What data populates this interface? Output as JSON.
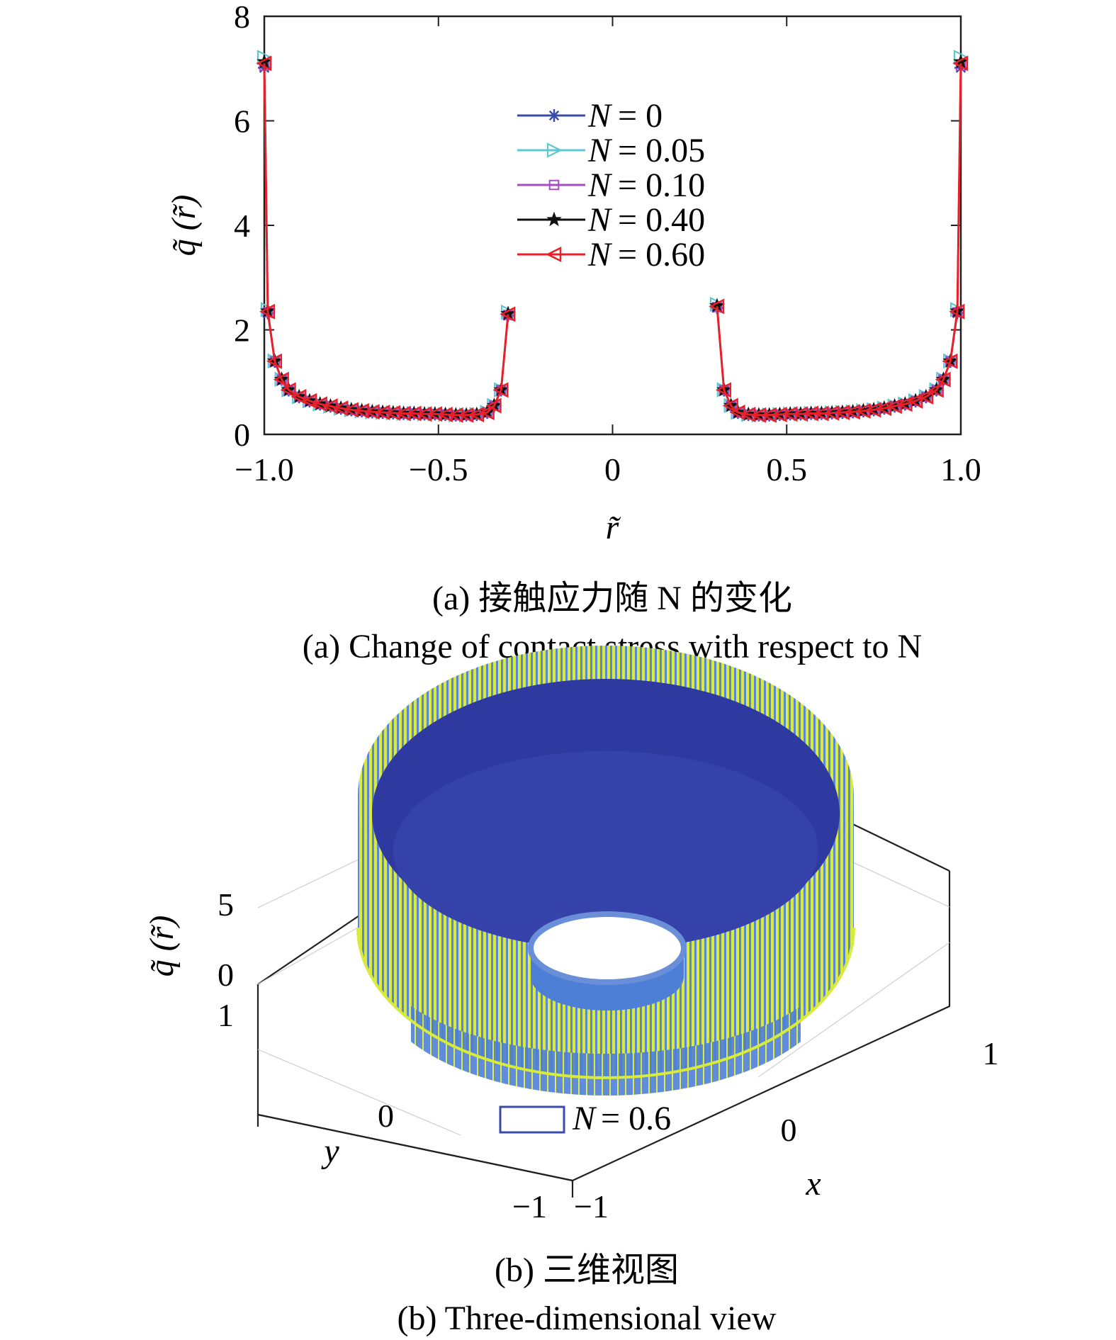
{
  "chart_data": [
    {
      "type": "line",
      "xlabel": "r̃",
      "ylabel": "q̃ (r̃)",
      "xlim": [
        -1.0,
        1.0
      ],
      "ylim": [
        0,
        8
      ],
      "x_ticks": [
        "−1.0",
        "−0.5",
        "0",
        "0.5",
        "1.0"
      ],
      "x_tick_values": [
        -1.0,
        -0.5,
        0,
        0.5,
        1.0
      ],
      "y_ticks": [
        "0",
        "2",
        "4",
        "6",
        "8"
      ],
      "y_tick_values": [
        0,
        2,
        4,
        6,
        8
      ],
      "legend_position": "top-center",
      "caption_cn": "(a) 接触应力随 N 的变化",
      "caption_en": "(a) Change of contact stress with respect to N",
      "series": [
        {
          "name": "N = 0",
          "label_var": "N",
          "label_value": "= 0",
          "color": "#3b4ba8",
          "marker": "asterisk"
        },
        {
          "name": "N = 0.05",
          "label_var": "N",
          "label_value": "= 0.05",
          "color": "#5ec8cf",
          "marker": "triangle-right"
        },
        {
          "name": "N = 0.10",
          "label_var": "N",
          "label_value": "= 0.10",
          "color": "#a64cc4",
          "marker": "square"
        },
        {
          "name": "N = 0.40",
          "label_var": "N",
          "label_value": "= 0.40",
          "color": "#111111",
          "marker": "star"
        },
        {
          "name": "N = 0.60",
          "label_var": "N",
          "label_value": "= 0.60",
          "color": "#e8202a",
          "marker": "triangle-left"
        }
      ],
      "x": [
        -1.0,
        -0.99,
        -0.97,
        -0.95,
        -0.93,
        -0.9,
        -0.87,
        -0.84,
        -0.81,
        -0.78,
        -0.75,
        -0.72,
        -0.69,
        -0.66,
        -0.63,
        -0.6,
        -0.57,
        -0.54,
        -0.51,
        -0.48,
        -0.45,
        -0.42,
        -0.39,
        -0.36,
        -0.34,
        -0.32,
        -0.3,
        null,
        0.3,
        0.32,
        0.34,
        0.36,
        0.39,
        0.42,
        0.45,
        0.48,
        0.51,
        0.54,
        0.57,
        0.6,
        0.63,
        0.66,
        0.69,
        0.72,
        0.75,
        0.78,
        0.81,
        0.84,
        0.87,
        0.9,
        0.93,
        0.95,
        0.97,
        0.99,
        1.0
      ],
      "y": [
        7.1,
        2.35,
        1.4,
        1.05,
        0.85,
        0.72,
        0.64,
        0.58,
        0.54,
        0.5,
        0.47,
        0.45,
        0.43,
        0.42,
        0.41,
        0.4,
        0.4,
        0.39,
        0.39,
        0.38,
        0.37,
        0.37,
        0.38,
        0.42,
        0.55,
        0.85,
        2.3,
        null,
        2.45,
        0.85,
        0.55,
        0.42,
        0.38,
        0.37,
        0.37,
        0.38,
        0.39,
        0.39,
        0.4,
        0.4,
        0.41,
        0.42,
        0.43,
        0.45,
        0.47,
        0.5,
        0.54,
        0.58,
        0.64,
        0.72,
        0.85,
        1.05,
        1.4,
        2.35,
        7.1
      ]
    },
    {
      "type": "surface",
      "zlabel": "q̃ (r̃)",
      "xlabel": "x",
      "ylabel": "y",
      "z_ticks": [
        "0",
        "5"
      ],
      "y_ticks": [
        "1",
        "0",
        "−1"
      ],
      "x_ticks": [
        "−1",
        "0",
        "1"
      ],
      "inner_radius": 0.3,
      "outer_radius": 1.0,
      "colors": {
        "high": "#d8ea3c",
        "mid": "#4e7fd6",
        "low": "#2f3aa0"
      },
      "legend_var": "N",
      "legend_value": "= 0.6",
      "caption_cn": "(b) 三维视图",
      "caption_en": "(b) Three-dimensional view"
    }
  ]
}
